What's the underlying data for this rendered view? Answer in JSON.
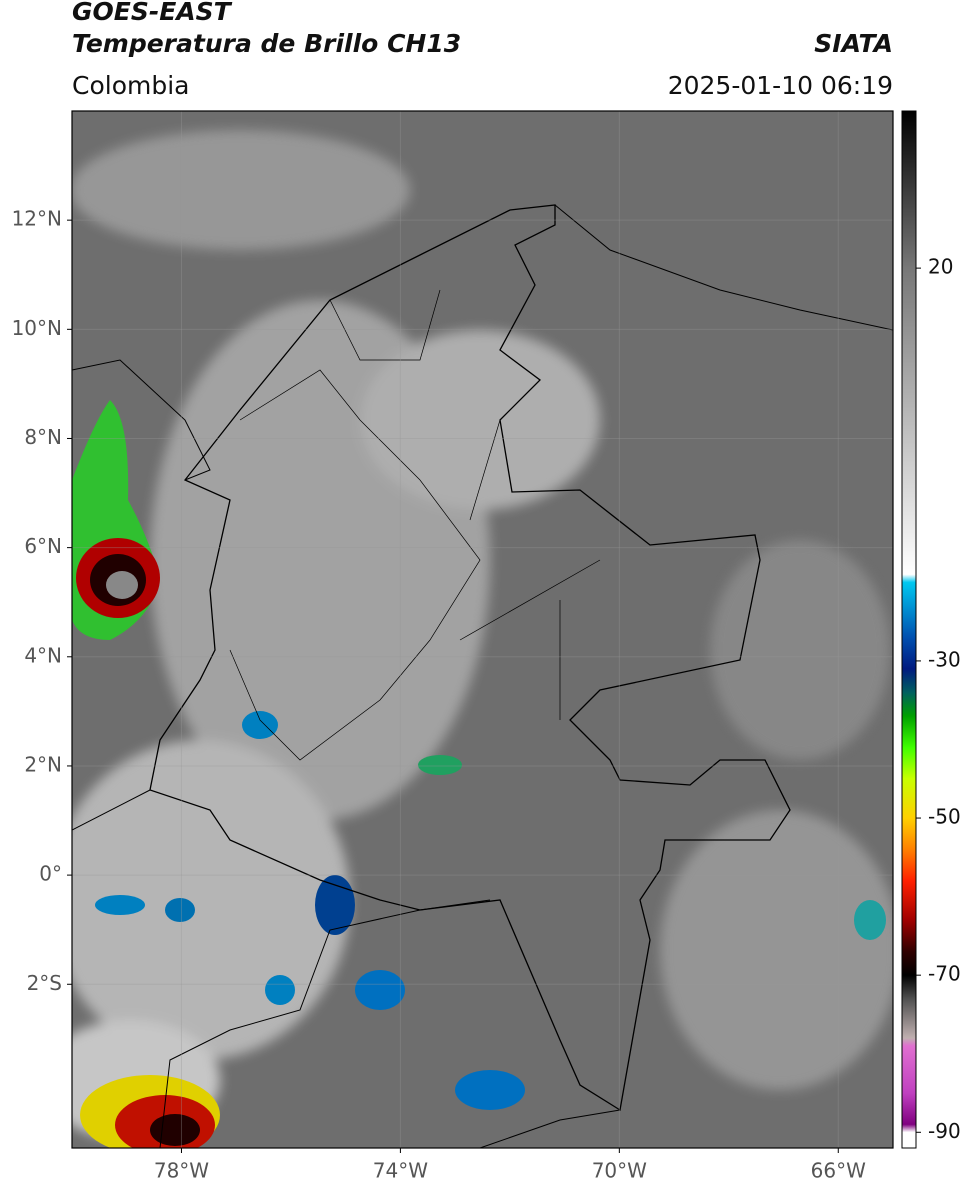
{
  "header": {
    "title": "GOES-EAST",
    "subtitle": "Temperatura de Brillo CH13",
    "source": "SIATA",
    "region": "Colombia",
    "timestamp": "2025-01-10 06:19"
  },
  "map": {
    "xlim": [
      -80,
      -65
    ],
    "ylim": [
      -5,
      14
    ],
    "xticks": [
      {
        "value": -78,
        "label": "78°W"
      },
      {
        "value": -74,
        "label": "74°W"
      },
      {
        "value": -70,
        "label": "70°W"
      },
      {
        "value": -66,
        "label": "66°W"
      }
    ],
    "yticks": [
      {
        "value": 12,
        "label": "12°N"
      },
      {
        "value": 10,
        "label": "10°N"
      },
      {
        "value": 8,
        "label": "8°N"
      },
      {
        "value": 6,
        "label": "6°N"
      },
      {
        "value": 4,
        "label": "4°N"
      },
      {
        "value": 2,
        "label": "2°N"
      },
      {
        "value": 0,
        "label": "0°"
      },
      {
        "value": -2,
        "label": "2°S"
      }
    ],
    "grid": true
  },
  "colorbar": {
    "lim": [
      -92,
      40
    ],
    "ticks": [
      20,
      -30,
      -50,
      -70,
      -90
    ],
    "stops": [
      {
        "value": 40,
        "color": "#000000"
      },
      {
        "value": 20,
        "color": "#777777"
      },
      {
        "value": -19,
        "color": "#ffffff"
      },
      {
        "value": -20,
        "color": "#00c8f0"
      },
      {
        "value": -27,
        "color": "#0050b0"
      },
      {
        "value": -31,
        "color": "#001a80"
      },
      {
        "value": -34,
        "color": "#006060"
      },
      {
        "value": -37,
        "color": "#00a000"
      },
      {
        "value": -41,
        "color": "#40ff00"
      },
      {
        "value": -45,
        "color": "#c8ff00"
      },
      {
        "value": -50,
        "color": "#ffd000"
      },
      {
        "value": -54,
        "color": "#ff8000"
      },
      {
        "value": -58,
        "color": "#ff2000"
      },
      {
        "value": -63,
        "color": "#a00000"
      },
      {
        "value": -67,
        "color": "#300000"
      },
      {
        "value": -70,
        "color": "#000000"
      },
      {
        "value": -73,
        "color": "#505050"
      },
      {
        "value": -78,
        "color": "#c0b0b0"
      },
      {
        "value": -79,
        "color": "#e070d0"
      },
      {
        "value": -85,
        "color": "#c040c0"
      },
      {
        "value": -89,
        "color": "#800080"
      },
      {
        "value": -90,
        "color": "#ffffff"
      },
      {
        "value": -92,
        "color": "#ffffff"
      }
    ]
  }
}
